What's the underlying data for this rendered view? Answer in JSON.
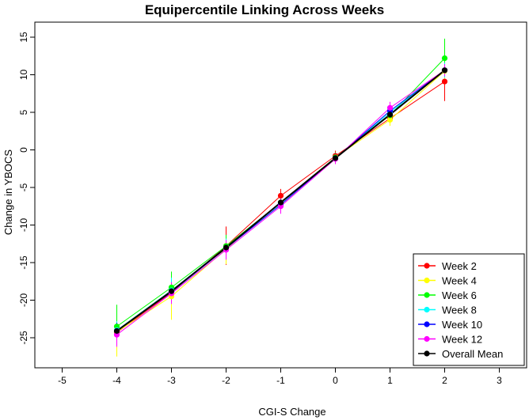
{
  "chart_data": {
    "type": "line",
    "title": "Equipercentile Linking Across Weeks",
    "xlabel": "CGI-S Change",
    "ylabel": "Change in YBOCS",
    "xlim": [
      -5.5,
      3.5
    ],
    "ylim": [
      -29,
      17
    ],
    "xticks": [
      -5,
      -4,
      -3,
      -2,
      -1,
      0,
      1,
      2,
      3
    ],
    "yticks": [
      -25,
      -20,
      -15,
      -10,
      -5,
      0,
      5,
      10,
      15
    ],
    "xtick_labels": [
      "-5",
      "-4",
      "-3",
      "-2",
      "-1",
      "0",
      "1",
      "2",
      "3"
    ],
    "ytick_labels": [
      "-25",
      "-20",
      "-15",
      "-10",
      "-5",
      "0",
      "5",
      "10",
      "15"
    ],
    "grid": false,
    "legend_position": "bottom-right",
    "x": [
      -4,
      -3,
      -2,
      -1,
      0,
      1,
      2
    ],
    "series": [
      {
        "name": "Week 2",
        "color": "#ff0000",
        "values": [
          -24.3,
          -19.0,
          -12.8,
          -6.1,
          -0.8,
          4.2,
          9.1
        ],
        "err_low": [
          -25.6,
          -21.2,
          -15.3,
          -7.3,
          -1.6,
          3.3,
          6.5
        ],
        "err_high": [
          -22.5,
          -16.8,
          -10.2,
          -5.2,
          -0.1,
          5.2,
          11.2
        ]
      },
      {
        "name": "Week 4",
        "color": "#ffff00",
        "values": [
          -24.2,
          -19.5,
          -13.2,
          -7.0,
          -1.0,
          4.0,
          10.5
        ],
        "err_low": [
          -27.5,
          -22.6,
          -15.2,
          -8.1,
          -1.8,
          3.2,
          9.0
        ],
        "err_high": [
          -22.0,
          -16.5,
          -11.5,
          -6.0,
          -0.3,
          5.0,
          12.0
        ]
      },
      {
        "name": "Week 6",
        "color": "#00ff00",
        "values": [
          -23.5,
          -18.3,
          -12.8,
          -7.0,
          -1.0,
          4.6,
          12.2
        ],
        "err_low": [
          -24.8,
          -20.2,
          -14.3,
          -8.0,
          -1.8,
          3.8,
          9.8
        ],
        "err_high": [
          -20.6,
          -16.2,
          -11.3,
          -6.0,
          -0.3,
          5.4,
          14.8
        ]
      },
      {
        "name": "Week 8",
        "color": "#00ffff",
        "values": [
          -24.0,
          -18.7,
          -13.0,
          -7.1,
          -1.1,
          5.0,
          10.6
        ],
        "err_low": [
          -25.0,
          -20.0,
          -14.2,
          -8.0,
          -1.8,
          4.2,
          9.6
        ],
        "err_high": [
          -22.8,
          -17.0,
          -11.8,
          -6.2,
          -0.4,
          5.8,
          11.6
        ]
      },
      {
        "name": "Week 10",
        "color": "#0000ff",
        "values": [
          -24.1,
          -18.9,
          -13.1,
          -7.3,
          -1.1,
          5.2,
          10.6
        ],
        "err_low": [
          -25.0,
          -20.0,
          -14.3,
          -8.2,
          -1.8,
          4.4,
          9.8
        ],
        "err_high": [
          -23.0,
          -17.8,
          -12.0,
          -6.4,
          -0.4,
          6.0,
          11.4
        ]
      },
      {
        "name": "Week 12",
        "color": "#ff00ff",
        "values": [
          -24.6,
          -19.1,
          -13.3,
          -7.5,
          -1.2,
          5.6,
          10.6
        ],
        "err_low": [
          -26.2,
          -20.5,
          -14.6,
          -8.5,
          -1.9,
          4.6,
          9.8
        ],
        "err_high": [
          -23.2,
          -17.6,
          -12.0,
          -6.5,
          -0.5,
          6.4,
          11.4
        ]
      },
      {
        "name": "Overall Mean",
        "color": "#000000",
        "values": [
          -24.1,
          -18.8,
          -13.0,
          -7.0,
          -1.1,
          4.7,
          10.6
        ],
        "err_low": [
          -24.1,
          -18.8,
          -13.0,
          -7.0,
          -1.1,
          4.7,
          10.6
        ],
        "err_high": [
          -24.1,
          -18.8,
          -13.0,
          -7.0,
          -1.1,
          4.7,
          10.6
        ]
      }
    ]
  }
}
